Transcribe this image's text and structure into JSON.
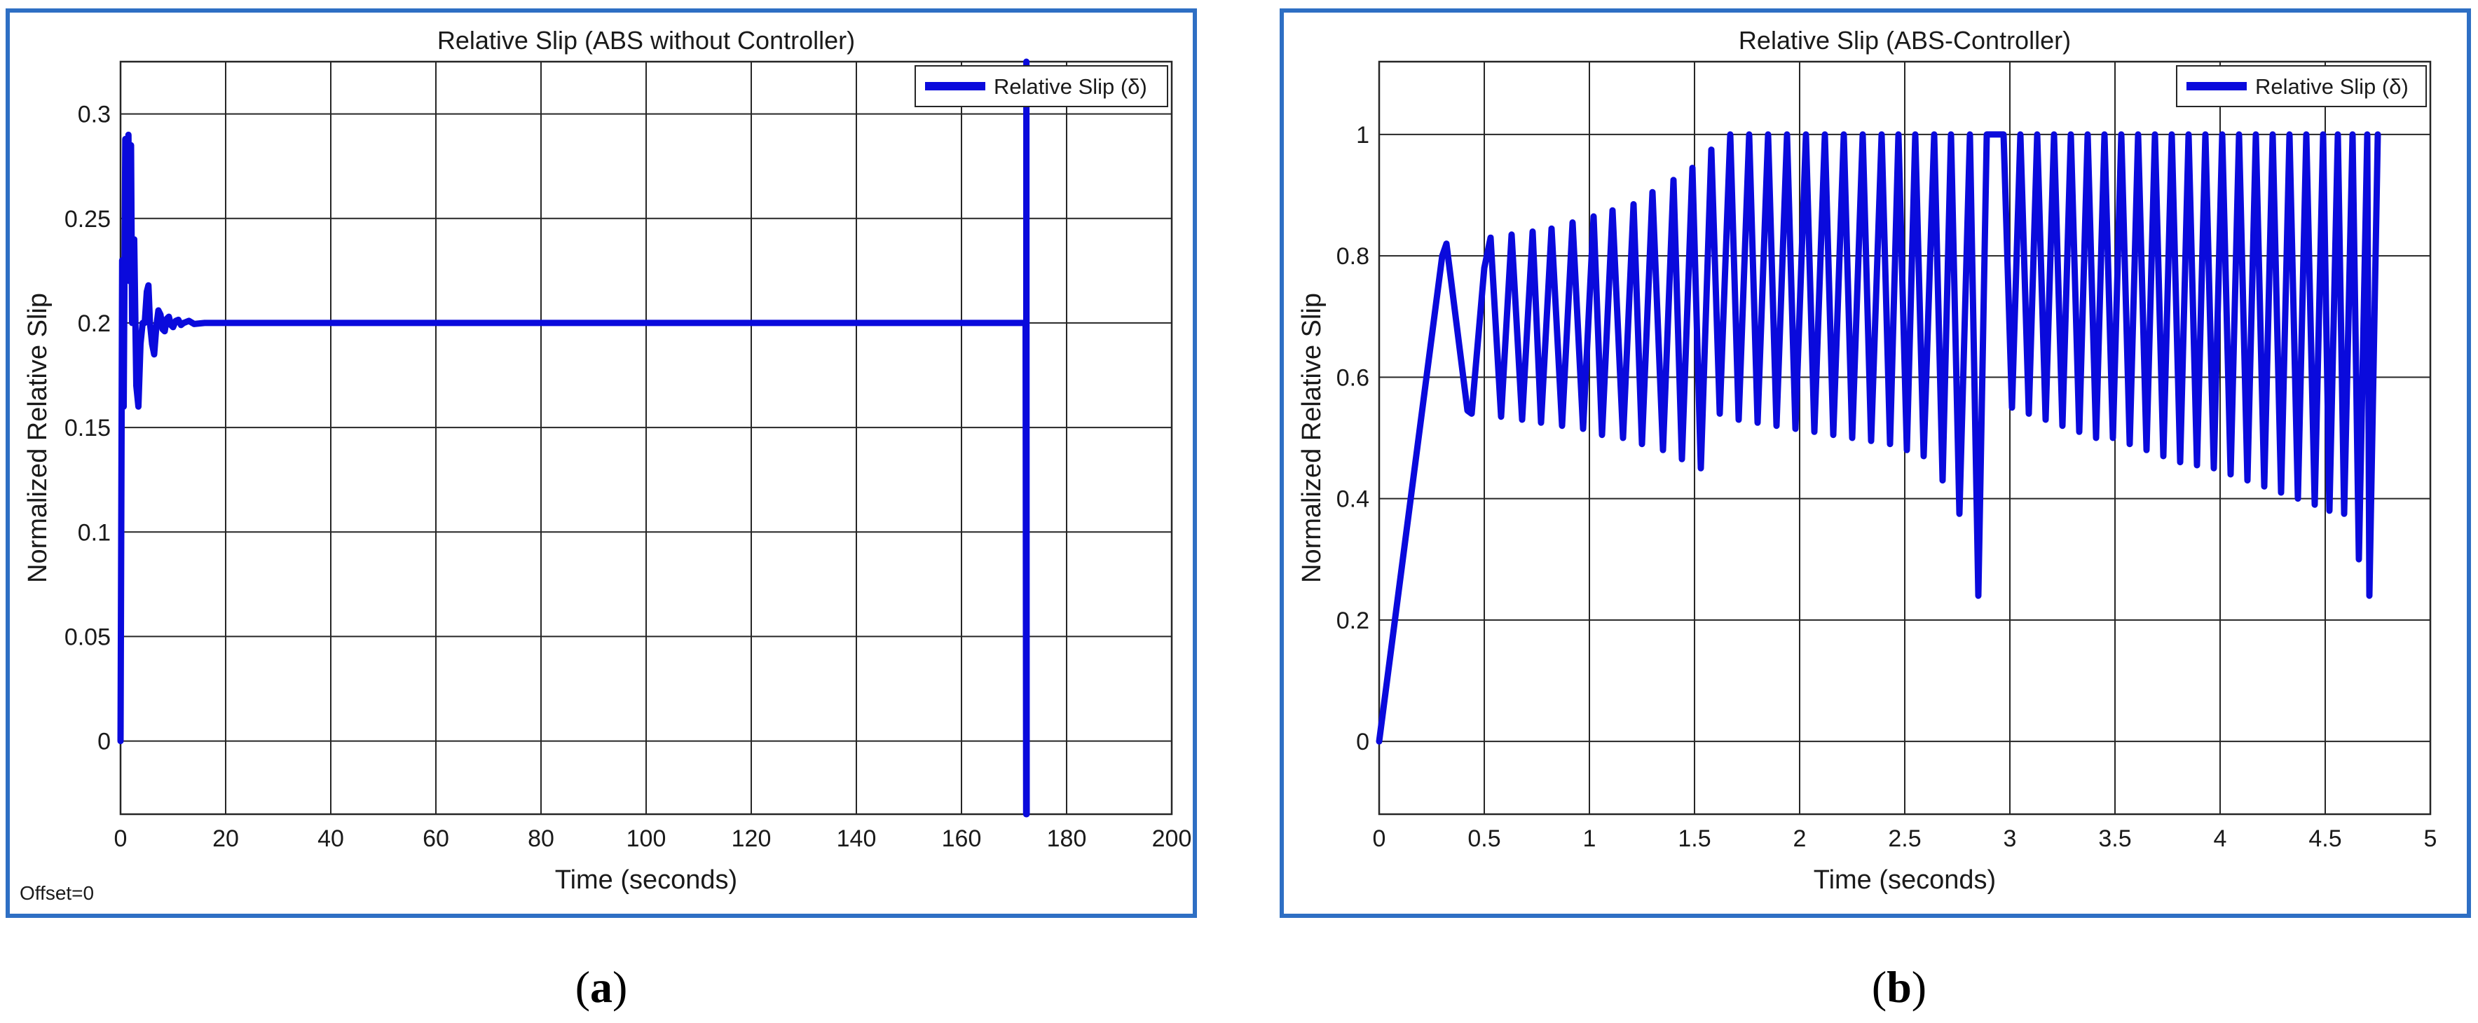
{
  "charts": {
    "a": {
      "caption_open": "(",
      "caption_letter": "a",
      "caption_close": ")",
      "offset_text": "Offset=0"
    },
    "b": {
      "caption_open": "(",
      "caption_letter": "b",
      "caption_close": ")"
    }
  },
  "chart_data": [
    {
      "type": "line",
      "title": "Relative Slip (ABS without Controller)",
      "xlabel": "Time (seconds)",
      "ylabel": "Normalized Relative Slip",
      "xlim": [
        0,
        200
      ],
      "ylim": [
        -0.035,
        0.325
      ],
      "xticks": [
        0,
        20,
        40,
        60,
        80,
        100,
        120,
        140,
        160,
        180,
        200
      ],
      "xtick_labels": [
        "0",
        "20",
        "40",
        "60",
        "80",
        "100",
        "120",
        "140",
        "160",
        "180",
        "200"
      ],
      "yticks": [
        0,
        0.05,
        0.1,
        0.15,
        0.2,
        0.25,
        0.3
      ],
      "ytick_labels": [
        "0",
        "0.05",
        "0.1",
        "0.15",
        "0.2",
        "0.25",
        "0.3"
      ],
      "grid": true,
      "legend": "top-right",
      "color": "#0a0adc",
      "series": [
        {
          "name": "Relative Slip (δ)",
          "x": [
            0,
            0.3,
            0.6,
            0.9,
            1.2,
            1.5,
            1.7,
            2.0,
            2.2,
            2.6,
            3.0,
            3.4,
            3.8,
            4.2,
            4.6,
            5.0,
            5.3,
            5.6,
            6.0,
            6.4,
            6.8,
            7.2,
            7.6,
            8.0,
            8.4,
            8.8,
            9.2,
            9.6,
            10,
            10.5,
            11,
            11.5,
            12,
            13,
            14,
            16,
            20,
            40,
            80,
            120,
            160,
            171,
            172.2,
            172.3,
            172.35,
            172.4
          ],
          "y": [
            0,
            0.23,
            0.16,
            0.288,
            0.275,
            0.29,
            0.22,
            0.285,
            0.2,
            0.24,
            0.17,
            0.16,
            0.19,
            0.2,
            0.2,
            0.215,
            0.218,
            0.2,
            0.19,
            0.185,
            0.198,
            0.206,
            0.204,
            0.197,
            0.196,
            0.202,
            0.203,
            0.199,
            0.198,
            0.201,
            0.2015,
            0.199,
            0.2,
            0.201,
            0.1995,
            0.2,
            0.2,
            0.2,
            0.2,
            0.2,
            0.2,
            0.2,
            0.2,
            -0.035,
            0.325,
            -0.035
          ]
        }
      ]
    },
    {
      "type": "line",
      "title": "Relative Slip (ABS-Controller)",
      "xlabel": "Time (seconds)",
      "ylabel": "Normalized Relative Slip",
      "xlim": [
        0,
        5
      ],
      "ylim": [
        -0.12,
        1.12
      ],
      "xticks": [
        0,
        0.5,
        1,
        1.5,
        2,
        2.5,
        3,
        3.5,
        4,
        4.5,
        5
      ],
      "xtick_labels": [
        "0",
        "0.5",
        "1",
        "1.5",
        "2",
        "2.5",
        "3",
        "3.5",
        "4",
        "4.5",
        "5"
      ],
      "yticks": [
        0,
        0.2,
        0.4,
        0.6,
        0.8,
        1
      ],
      "ytick_labels": [
        "0",
        "0.2",
        "0.4",
        "0.6",
        "0.8",
        "1"
      ],
      "grid": true,
      "legend": "top-right",
      "color": "#0a0adc",
      "series": [
        {
          "name": "Relative Slip (δ)",
          "x": [
            0,
            0.3,
            0.32,
            0.42,
            0.44,
            0.5,
            0.53,
            0.58,
            0.63,
            0.68,
            0.73,
            0.77,
            0.82,
            0.87,
            0.92,
            0.97,
            1.02,
            1.06,
            1.11,
            1.16,
            1.21,
            1.25,
            1.3,
            1.35,
            1.4,
            1.44,
            1.49,
            1.53,
            1.58,
            1.62,
            1.67,
            1.71,
            1.76,
            1.8,
            1.85,
            1.89,
            1.94,
            1.98,
            2.03,
            2.07,
            2.12,
            2.16,
            2.21,
            2.25,
            2.3,
            2.34,
            2.39,
            2.43,
            2.47,
            2.51,
            2.55,
            2.59,
            2.64,
            2.68,
            2.72,
            2.76,
            2.81,
            2.85,
            2.89,
            2.93,
            2.97,
            3.01,
            3.05,
            3.09,
            3.13,
            3.17,
            3.21,
            3.25,
            3.29,
            3.33,
            3.37,
            3.41,
            3.45,
            3.49,
            3.53,
            3.57,
            3.61,
            3.65,
            3.69,
            3.73,
            3.77,
            3.81,
            3.85,
            3.89,
            3.93,
            3.97,
            4.01,
            4.05,
            4.09,
            4.13,
            4.17,
            4.21,
            4.25,
            4.29,
            4.33,
            4.37,
            4.41,
            4.45,
            4.49,
            4.52,
            4.56,
            4.59,
            4.63,
            4.66,
            4.7,
            4.71,
            4.75
          ],
          "y": [
            0,
            0.8,
            0.82,
            0.545,
            0.54,
            0.78,
            0.83,
            0.535,
            0.835,
            0.53,
            0.84,
            0.525,
            0.845,
            0.52,
            0.855,
            0.515,
            0.865,
            0.505,
            0.875,
            0.5,
            0.885,
            0.49,
            0.905,
            0.48,
            0.925,
            0.465,
            0.945,
            0.45,
            0.975,
            0.54,
            1.0,
            0.53,
            1.0,
            0.525,
            1.0,
            0.52,
            1.0,
            0.515,
            1.0,
            0.51,
            1.0,
            0.505,
            1.0,
            0.5,
            1.0,
            0.495,
            1.0,
            0.49,
            1.0,
            0.48,
            1.0,
            0.47,
            1.0,
            0.43,
            1.0,
            0.375,
            1.0,
            0.24,
            1.0,
            1.0,
            1.0,
            0.55,
            1.0,
            0.54,
            1.0,
            0.53,
            1.0,
            0.52,
            1.0,
            0.51,
            1.0,
            0.5,
            1.0,
            0.5,
            1.0,
            0.49,
            1.0,
            0.48,
            1.0,
            0.47,
            1.0,
            0.46,
            1.0,
            0.455,
            1.0,
            0.45,
            1.0,
            0.44,
            1.0,
            0.43,
            1.0,
            0.42,
            1.0,
            0.41,
            1.0,
            0.4,
            1.0,
            0.39,
            1.0,
            0.38,
            1.0,
            0.375,
            1.0,
            0.3,
            1.0,
            0.24,
            1.0
          ]
        }
      ]
    }
  ]
}
